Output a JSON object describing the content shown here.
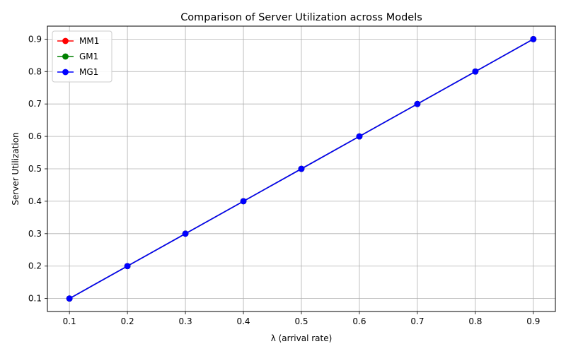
{
  "chart_data": {
    "type": "line",
    "title": "Comparison of Server Utilization across Models",
    "xlabel": "λ (arrival rate)",
    "ylabel": "Server Utilization",
    "x": [
      0.1,
      0.2,
      0.3,
      0.4,
      0.5,
      0.6,
      0.7,
      0.8,
      0.9
    ],
    "xlim": [
      0.062,
      0.938
    ],
    "ylim": [
      0.06,
      0.94
    ],
    "xticks": [
      "0.1",
      "0.2",
      "0.3",
      "0.4",
      "0.5",
      "0.6",
      "0.7",
      "0.8",
      "0.9"
    ],
    "yticks": [
      "0.1",
      "0.2",
      "0.3",
      "0.4",
      "0.5",
      "0.6",
      "0.7",
      "0.8",
      "0.9"
    ],
    "grid": true,
    "legend_position": "top-left",
    "series": [
      {
        "name": "MM1",
        "color": "#ff0000",
        "marker": "circle",
        "values": [
          0.1,
          0.2,
          0.3,
          0.4,
          0.5,
          0.6,
          0.7,
          0.8,
          0.9
        ]
      },
      {
        "name": "GM1",
        "color": "#008000",
        "marker": "circle",
        "values": [
          0.1,
          0.2,
          0.3,
          0.4,
          0.5,
          0.6,
          0.7,
          0.8,
          0.9
        ]
      },
      {
        "name": "MG1",
        "color": "#0000ff",
        "marker": "circle",
        "values": [
          0.1,
          0.2,
          0.3,
          0.4,
          0.5,
          0.6,
          0.7,
          0.8,
          0.9
        ]
      }
    ]
  }
}
